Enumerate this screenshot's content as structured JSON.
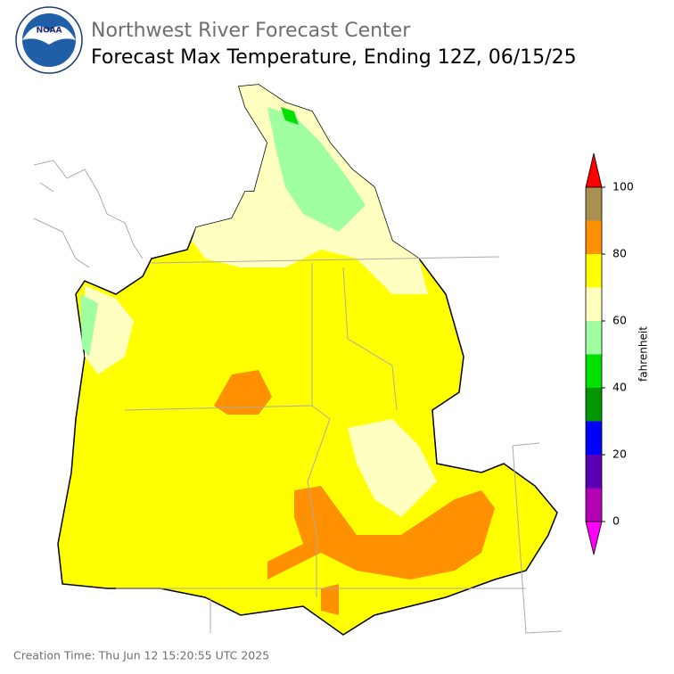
{
  "header": {
    "agency": "Northwest River Forecast Center",
    "title": "Forecast Max Temperature, Ending 12Z, 06/15/25"
  },
  "colorbar": {
    "label": "fahrenheit",
    "range": [
      0,
      100
    ],
    "ticks": [
      0,
      20,
      40,
      60,
      80,
      100
    ],
    "bins": [
      0,
      10,
      20,
      30,
      40,
      50,
      60,
      70,
      80,
      90,
      100
    ],
    "colors": [
      "#b400b4",
      "#5a00b4",
      "#0000ff",
      "#009600",
      "#00e000",
      "#a0ffa0",
      "#ffffc0",
      "#ffff00",
      "#ff9000",
      "#a89050"
    ],
    "under_color": "#ff00ff",
    "over_color": "#ff0000"
  },
  "footer": "Creation Time: Thu Jun 12 15:20:55 UTC 2025"
}
